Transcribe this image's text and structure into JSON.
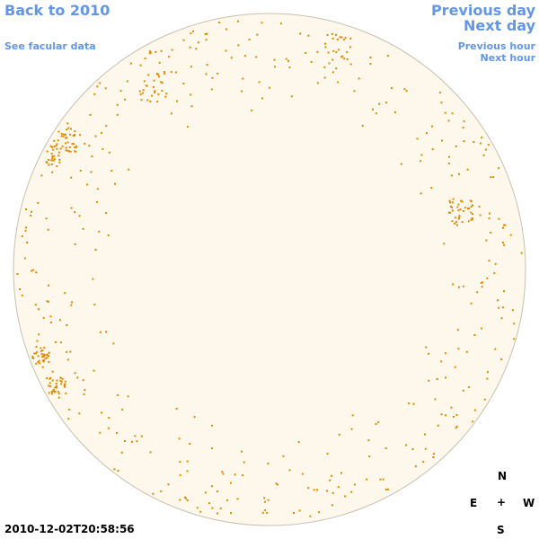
{
  "nav": {
    "back_label": "Back to 2010",
    "facular_label": "See facular data",
    "prev_day_label": "Previous day",
    "next_day_label": "Next day",
    "prev_hour_label": "Previous hour",
    "next_hour_label": "Next hour"
  },
  "compass": {
    "north": "N",
    "south": "S",
    "east": "E",
    "west": "W",
    "center": "+"
  },
  "timestamp": "2010-12-02T20:58:56",
  "colors": {
    "disk_fill": "#fef8ec",
    "disk_stroke": "#c8c0b0",
    "marker": "#e08a00",
    "link": "#6496e6"
  }
}
